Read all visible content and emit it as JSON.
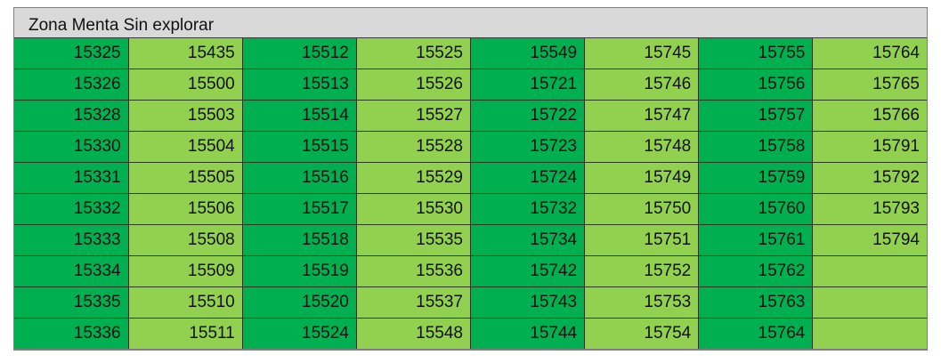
{
  "title": "Zona Menta Sin explorar",
  "colors": {
    "dark_green": "#00B050",
    "light_green": "#92D050",
    "header_gray": "#D9D9D9"
  },
  "columns": [
    [
      "15325",
      "15326",
      "15328",
      "15330",
      "15331",
      "15332",
      "15333",
      "15334",
      "15335",
      "15336"
    ],
    [
      "15435",
      "15500",
      "15503",
      "15504",
      "15505",
      "15506",
      "15508",
      "15509",
      "15510",
      "15511"
    ],
    [
      "15512",
      "15513",
      "15514",
      "15515",
      "15516",
      "15517",
      "15518",
      "15519",
      "15520",
      "15524"
    ],
    [
      "15525",
      "15526",
      "15527",
      "15528",
      "15529",
      "15530",
      "15535",
      "15536",
      "15537",
      "15548"
    ],
    [
      "15549",
      "15721",
      "15722",
      "15723",
      "15724",
      "15732",
      "15734",
      "15742",
      "15743",
      "15744"
    ],
    [
      "15745",
      "15746",
      "15747",
      "15748",
      "15749",
      "15750",
      "15751",
      "15752",
      "15753",
      "15754"
    ],
    [
      "15755",
      "15756",
      "15757",
      "15758",
      "15759",
      "15760",
      "15761",
      "15762",
      "15763",
      "15764"
    ],
    [
      "15764",
      "15765",
      "15766",
      "15791",
      "15792",
      "15793",
      "15794",
      "",
      "",
      ""
    ]
  ]
}
